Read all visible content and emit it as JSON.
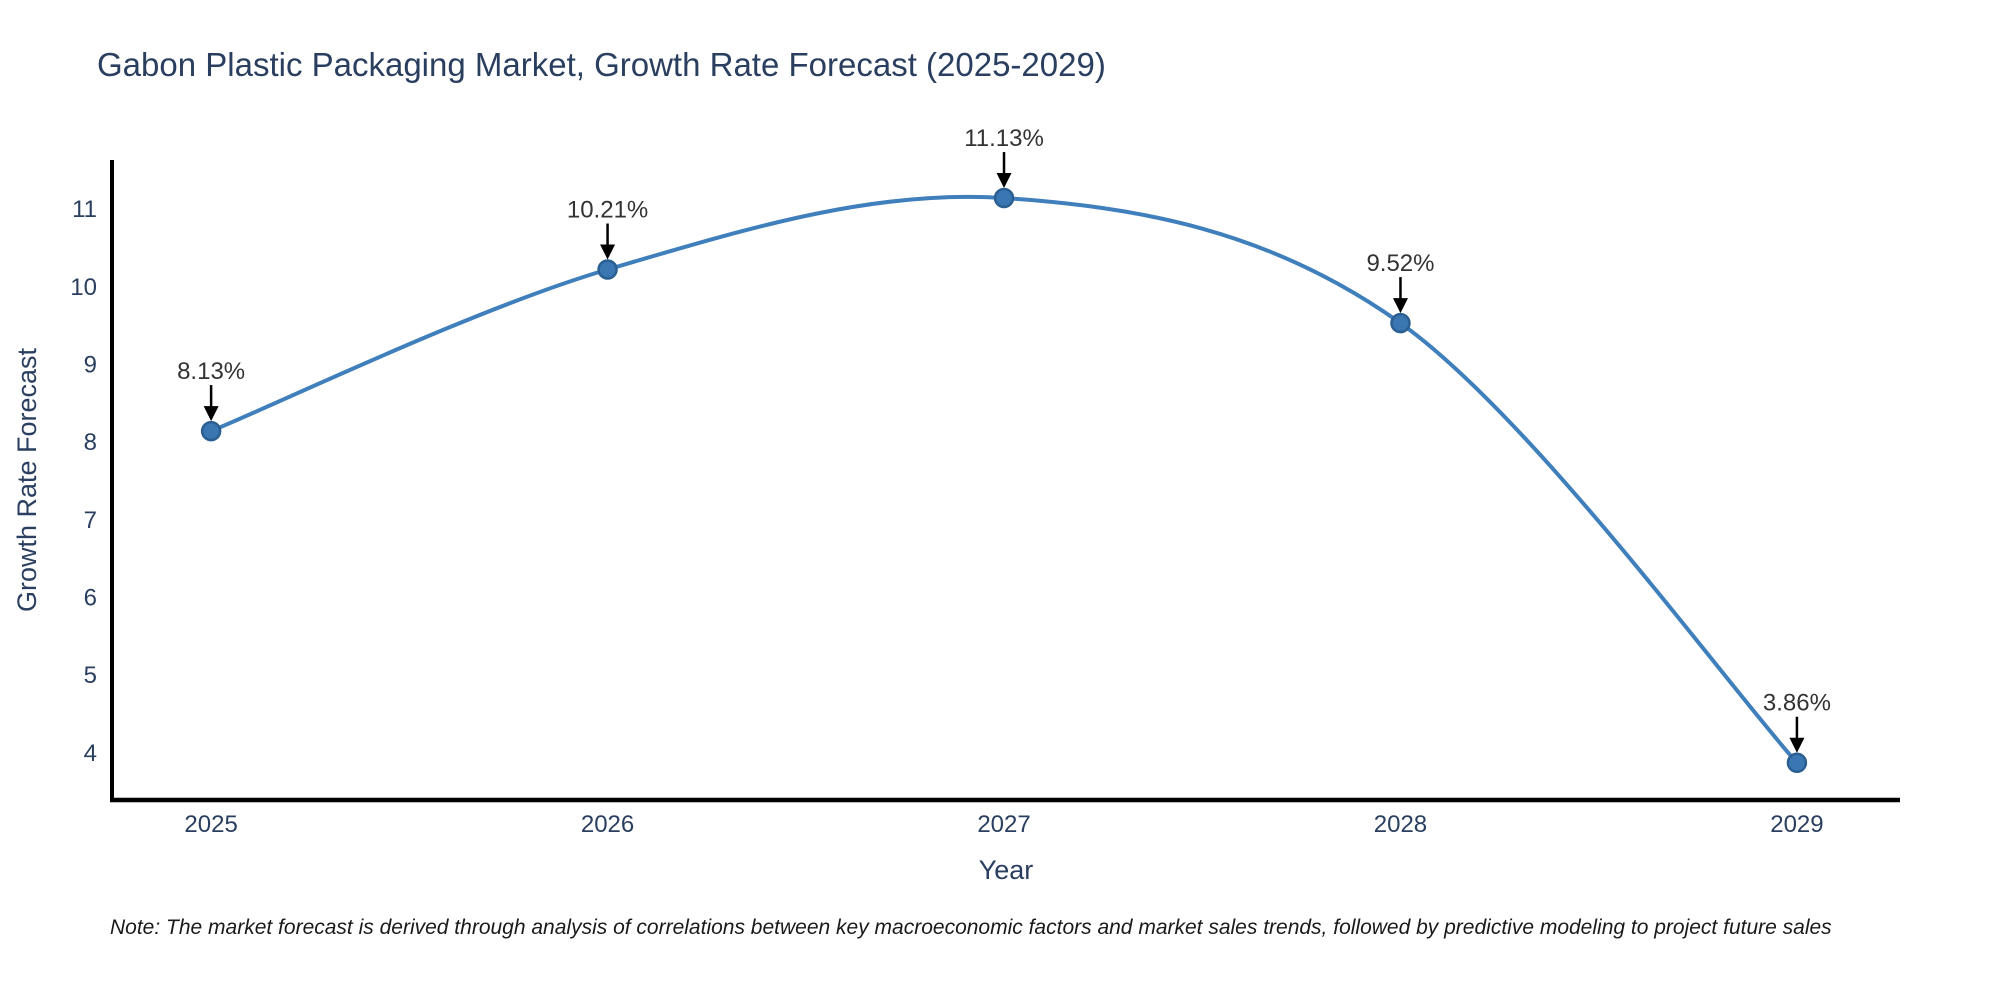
{
  "page": {
    "note": "Note: The market forecast is derived through analysis of correlations between key macroeconomic factors and market sales trends, followed by predictive modeling to project future sales"
  },
  "chart_data": {
    "type": "line",
    "title": "Gabon Plastic Packaging Market, Growth Rate Forecast (2025-2029)",
    "xlabel": "Year",
    "ylabel": "Growth Rate Forecast",
    "categories": [
      "2025",
      "2026",
      "2027",
      "2028",
      "2029"
    ],
    "x": [
      2025,
      2026,
      2027,
      2028,
      2029
    ],
    "y": [
      8.13,
      10.21,
      11.13,
      9.52,
      3.86
    ],
    "point_labels": [
      "8.13%",
      "10.21%",
      "11.13%",
      "9.52%",
      "3.86%"
    ],
    "y_ticks": [
      4,
      5,
      6,
      7,
      8,
      9,
      10,
      11
    ],
    "xlim": [
      2024.75,
      2029.26
    ],
    "ylim": [
      3.38,
      11.62
    ],
    "line_shape": "spline",
    "grid": false,
    "legend": "none",
    "colors": {
      "line": "#3f7fbc",
      "marker_fill": "#3a76b2",
      "marker_edge": "#2b5f92",
      "arrow": "#000000",
      "tick_text": "#2a3f5f",
      "annotation_text": "#333333",
      "axis_line": "#000000",
      "note_text": "#1a1a1a",
      "background": "#ffffff"
    }
  }
}
